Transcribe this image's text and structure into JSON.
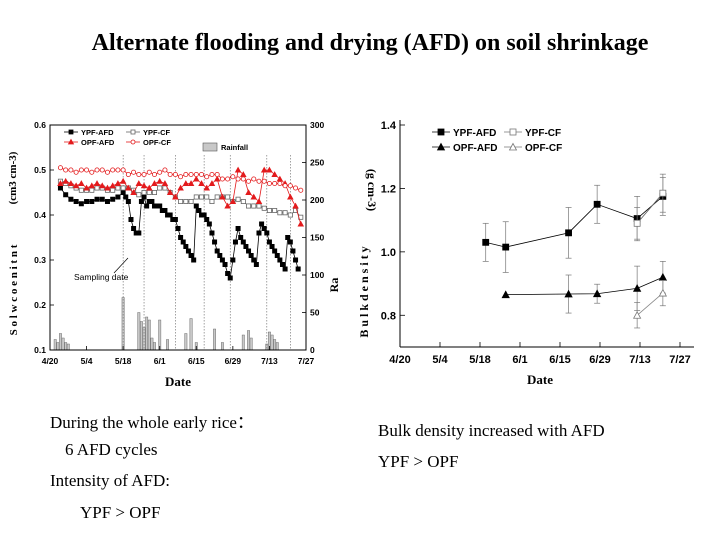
{
  "title": "Alternate flooding and drying (AFD) on soil shrinkage",
  "notes_left": [
    "During the whole early rice：",
    "6 AFD cycles",
    "Intensity of AFD:",
    "YPF > OPF"
  ],
  "notes_right": [
    "Bulk density increased with AFD",
    "YPF > OPF"
  ],
  "chart_data": [
    {
      "type": "line",
      "name": "soil moisture and rainfall",
      "xlabel": "Date",
      "ylabel": "(cm3 cm-3)",
      "y2label": "Ra",
      "ylabel_fragments": "S o l w c o e n i t n t",
      "annotation": "Sampling date",
      "xticks": [
        "4/20",
        "5/4",
        "5/18",
        "6/1",
        "6/15",
        "6/29",
        "7/13",
        "7/27"
      ],
      "ylim": [
        0.1,
        0.6
      ],
      "yticks": [
        "0.1",
        "0.2",
        "0.3",
        "0.4",
        "0.5",
        "0.6"
      ],
      "y2lim": [
        0,
        300
      ],
      "y2ticks": [
        "0",
        "50",
        "100",
        "150",
        "200",
        "250",
        "300"
      ],
      "x_range_days": [
        0,
        98
      ],
      "sampling_days": [
        28,
        36,
        48,
        59,
        69,
        83,
        92
      ],
      "series": [
        {
          "name": "YPF-AFD",
          "marker": "filled-square",
          "x": [
            4,
            6,
            8,
            10,
            12,
            14,
            16,
            18,
            20,
            22,
            24,
            26,
            28,
            29,
            30,
            31,
            32,
            33,
            34,
            35,
            36,
            37,
            38,
            39,
            40,
            41,
            42,
            43,
            44,
            45,
            46,
            47,
            48,
            49,
            50,
            51,
            52,
            53,
            54,
            55,
            56,
            57,
            58,
            59,
            60,
            61,
            62,
            63,
            64,
            65,
            66,
            67,
            68,
            69,
            70,
            71,
            72,
            73,
            74,
            75,
            76,
            77,
            78,
            79,
            80,
            81,
            82,
            83,
            84,
            85,
            86,
            87,
            88,
            89,
            90,
            91,
            92,
            93,
            94,
            95
          ],
          "y": [
            0.46,
            0.445,
            0.435,
            0.43,
            0.425,
            0.43,
            0.43,
            0.435,
            0.435,
            0.43,
            0.435,
            0.44,
            0.45,
            0.44,
            0.43,
            0.39,
            0.37,
            0.36,
            0.36,
            0.43,
            0.44,
            0.42,
            0.43,
            0.43,
            0.42,
            0.42,
            0.42,
            0.41,
            0.41,
            0.4,
            0.4,
            0.39,
            0.39,
            0.37,
            0.35,
            0.34,
            0.33,
            0.32,
            0.31,
            0.3,
            0.42,
            0.41,
            0.4,
            0.4,
            0.39,
            0.38,
            0.36,
            0.34,
            0.32,
            0.31,
            0.3,
            0.29,
            0.27,
            0.26,
            0.3,
            0.34,
            0.37,
            0.35,
            0.34,
            0.33,
            0.32,
            0.31,
            0.3,
            0.29,
            0.36,
            0.38,
            0.37,
            0.36,
            0.34,
            0.33,
            0.32,
            0.31,
            0.3,
            0.29,
            0.28,
            0.35,
            0.34,
            0.32,
            0.3,
            0.28
          ]
        },
        {
          "name": "YPF-CF",
          "marker": "open-square",
          "x": [
            4,
            6,
            8,
            10,
            12,
            14,
            16,
            18,
            20,
            22,
            24,
            26,
            28,
            30,
            32,
            34,
            36,
            38,
            40,
            42,
            44,
            46,
            48,
            50,
            52,
            54,
            56,
            58,
            60,
            62,
            64,
            66,
            68,
            70,
            72,
            74,
            76,
            78,
            80,
            82,
            84,
            86,
            88,
            90,
            92,
            94,
            96
          ],
          "y": [
            0.475,
            0.47,
            0.465,
            0.46,
            0.455,
            0.455,
            0.455,
            0.46,
            0.46,
            0.455,
            0.455,
            0.46,
            0.46,
            0.46,
            0.455,
            0.445,
            0.45,
            0.45,
            0.45,
            0.46,
            0.46,
            0.45,
            0.44,
            0.43,
            0.43,
            0.43,
            0.44,
            0.44,
            0.44,
            0.43,
            0.44,
            0.44,
            0.44,
            0.43,
            0.435,
            0.43,
            0.42,
            0.42,
            0.42,
            0.415,
            0.41,
            0.41,
            0.405,
            0.405,
            0.4,
            0.41,
            0.395
          ]
        },
        {
          "name": "OPF-AFD",
          "marker": "filled-triangle",
          "x": [
            4,
            6,
            8,
            10,
            12,
            14,
            16,
            18,
            20,
            22,
            24,
            26,
            28,
            30,
            32,
            34,
            36,
            38,
            40,
            42,
            44,
            46,
            48,
            50,
            52,
            54,
            56,
            58,
            60,
            62,
            64,
            66,
            68,
            70,
            72,
            74,
            76,
            78,
            80,
            82,
            84,
            86,
            88,
            90,
            92,
            94,
            96
          ],
          "y": [
            0.47,
            0.475,
            0.47,
            0.465,
            0.47,
            0.46,
            0.465,
            0.47,
            0.465,
            0.46,
            0.465,
            0.47,
            0.475,
            0.46,
            0.45,
            0.47,
            0.465,
            0.46,
            0.47,
            0.475,
            0.47,
            0.45,
            0.44,
            0.46,
            0.47,
            0.47,
            0.48,
            0.47,
            0.46,
            0.47,
            0.48,
            0.44,
            0.42,
            0.43,
            0.5,
            0.49,
            0.45,
            0.44,
            0.43,
            0.5,
            0.5,
            0.49,
            0.48,
            0.47,
            0.44,
            0.42,
            0.38
          ]
        },
        {
          "name": "OPF-CF",
          "marker": "open-circle",
          "x": [
            4,
            6,
            8,
            10,
            12,
            14,
            16,
            18,
            20,
            22,
            24,
            26,
            28,
            30,
            32,
            34,
            36,
            38,
            40,
            42,
            44,
            46,
            48,
            50,
            52,
            54,
            56,
            58,
            60,
            62,
            64,
            66,
            68,
            70,
            72,
            74,
            76,
            78,
            80,
            82,
            84,
            86,
            88,
            90,
            92,
            94,
            96
          ],
          "y": [
            0.505,
            0.5,
            0.5,
            0.495,
            0.5,
            0.5,
            0.495,
            0.5,
            0.5,
            0.495,
            0.5,
            0.5,
            0.5,
            0.49,
            0.495,
            0.49,
            0.49,
            0.495,
            0.49,
            0.495,
            0.5,
            0.49,
            0.49,
            0.485,
            0.49,
            0.49,
            0.49,
            0.49,
            0.485,
            0.49,
            0.49,
            0.48,
            0.48,
            0.485,
            0.48,
            0.48,
            0.475,
            0.48,
            0.475,
            0.475,
            0.47,
            0.47,
            0.47,
            0.465,
            0.465,
            0.46,
            0.455
          ]
        },
        {
          "name": "Rainfall",
          "marker": "bar",
          "axis": "right",
          "x": [
            2,
            3,
            4,
            5,
            6,
            7,
            28,
            34,
            35,
            36,
            37,
            38,
            39,
            40,
            42,
            45,
            52,
            54,
            56,
            63,
            66,
            74,
            76,
            77,
            83,
            84,
            85,
            86,
            87
          ],
          "y": [
            14,
            10,
            22,
            16,
            10,
            8,
            70,
            50,
            38,
            30,
            44,
            40,
            16,
            10,
            40,
            14,
            22,
            42,
            10,
            28,
            10,
            20,
            26,
            16,
            8,
            24,
            20,
            14,
            10
          ]
        }
      ]
    },
    {
      "type": "line",
      "name": "bulk density",
      "xlabel": "Date",
      "ylabel": "(g cm-3)",
      "ylabel_fragments": "B u l k d e n s i t y",
      "xticks": [
        "4/20",
        "5/4",
        "5/18",
        "6/1",
        "6/15",
        "6/29",
        "7/13",
        "7/27"
      ],
      "ylim": [
        0.7,
        1.4
      ],
      "yticks": [
        "0.8",
        "1.0",
        "1.2",
        "1.4"
      ],
      "x_range_days": [
        0,
        98
      ],
      "series": [
        {
          "name": "YPF-AFD",
          "marker": "filled-square",
          "x": [
            30,
            37,
            59,
            69,
            83,
            92
          ],
          "y": [
            1.03,
            1.015,
            1.06,
            1.15,
            1.105,
            1.175
          ],
          "err": [
            0.06,
            0.08,
            0.08,
            0.06,
            0.07,
            0.06
          ]
        },
        {
          "name": "YPF-CF",
          "marker": "open-square",
          "x": [
            83,
            92
          ],
          "y": [
            1.09,
            1.185
          ],
          "err": [
            0.05,
            0.06
          ]
        },
        {
          "name": "OPF-AFD",
          "marker": "filled-triangle",
          "x": [
            37,
            59,
            69,
            83,
            92
          ],
          "y": [
            0.865,
            0.867,
            0.868,
            0.885,
            0.92
          ],
          "err": [
            0,
            0.06,
            0.03,
            0.07,
            0.05
          ]
        },
        {
          "name": "OPF-CF",
          "marker": "open-triangle",
          "x": [
            83,
            92
          ],
          "y": [
            0.8,
            0.87
          ],
          "err": [
            0.04,
            0.04
          ]
        }
      ]
    }
  ]
}
